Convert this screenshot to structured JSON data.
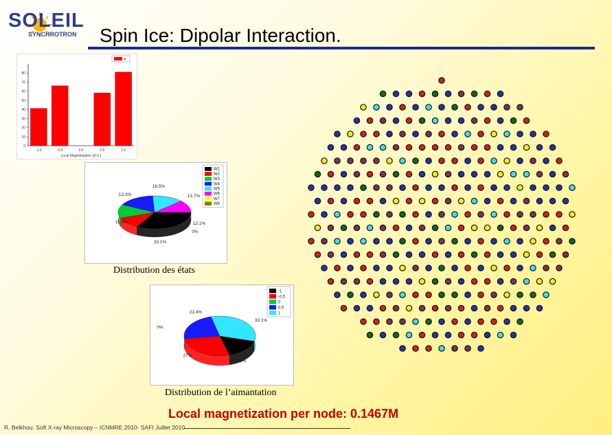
{
  "header": {
    "title": "Spin Ice: Dipolar Interaction.",
    "logo_text": "SOLEIL",
    "logo_subtext": "SYNCHROTRON"
  },
  "captions": {
    "distribution_states": "Distribution des états",
    "distribution_magnetization": "Distribution de l’aimantation"
  },
  "local_magnetization": "Local magnetization per node: 0.1467M",
  "footer": "R. Belkhou: Soft X-ray Microscopy – ICNMRE 2010- SAFI Juillet 2010",
  "chart_data": [
    {
      "type": "bar",
      "categories": [
        "-1.0",
        "-0.5",
        "0.0",
        "0.5",
        "1.0"
      ],
      "values": [
        41,
        66,
        0,
        58,
        81
      ],
      "xlabel": "Local Magnetisation (A.U.)",
      "ylabel": "",
      "ylim": [
        0,
        90
      ],
      "yticks": [
        "0",
        "10",
        "20",
        "30",
        "40",
        "50",
        "60",
        "70",
        "80"
      ],
      "legend": [
        "R"
      ],
      "legend_position": "top-right",
      "color": "#ff0000"
    },
    {
      "type": "pie",
      "labels": [
        "W1",
        "W2",
        "W3",
        "W4",
        "W5",
        "W6",
        "W7",
        "W8"
      ],
      "values": [
        33.1,
        11.3,
        13.3,
        16.5,
        13.7,
        12.1,
        0,
        0
      ],
      "value_labels": [
        "33.1%",
        "11.3%",
        "13.3%",
        "16.5%",
        "13.7%",
        "12.1%",
        "0%",
        ""
      ],
      "colors": [
        "#000000",
        "#ff0000",
        "#00cc33",
        "#1a1aff",
        "#33e6ff",
        "#ff00ff",
        "#ffff00",
        "#808000"
      ],
      "legend_position": "top-right"
    },
    {
      "type": "pie",
      "labels": [
        "-1",
        "-0,5",
        "0",
        "0.5",
        "1"
      ],
      "values": [
        16.5,
        27,
        0,
        23.4,
        33.1
      ],
      "value_labels": [
        "16.5%",
        "27%",
        "0%",
        "23.4%",
        "33.1%"
      ],
      "colors": [
        "#000000",
        "#ff0000",
        "#00cc33",
        "#1a1aff",
        "#33e6ff"
      ],
      "legend_position": "top-right"
    }
  ]
}
